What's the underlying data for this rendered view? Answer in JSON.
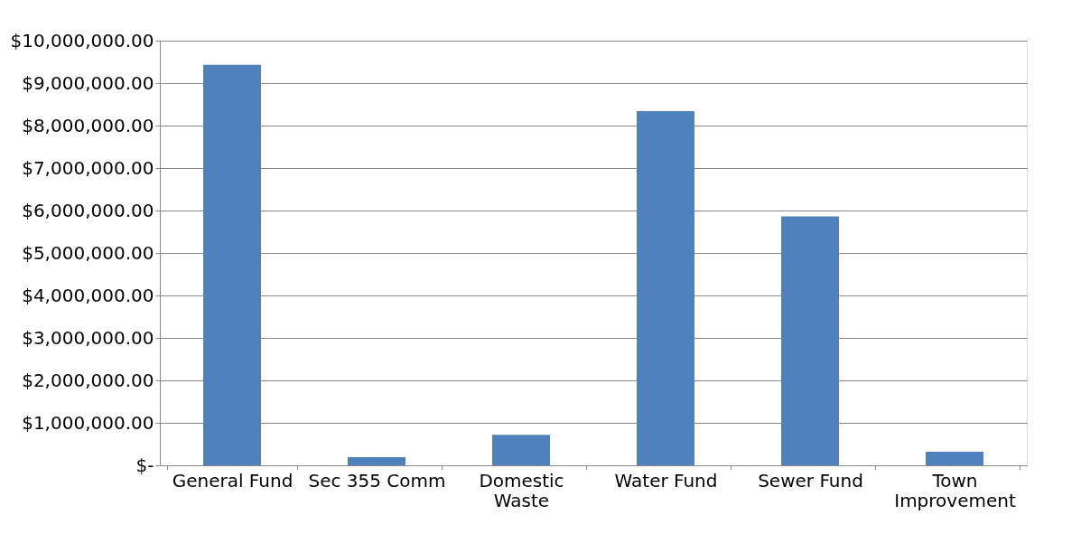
{
  "chart_data": {
    "type": "bar",
    "categories": [
      "General Fund",
      "Sec 355 Comm",
      "Domestic Waste",
      "Water Fund",
      "Sewer Fund",
      "Town Improvement"
    ],
    "values": [
      9430000,
      190000,
      720000,
      8340000,
      5860000,
      320000
    ],
    "color": "#4f81bd",
    "ylim": [
      0,
      10000000
    ],
    "yticks": [
      {
        "value": 0,
        "label": "$-"
      },
      {
        "value": 1000000,
        "label": "$1,000,000.00"
      },
      {
        "value": 2000000,
        "label": "$2,000,000.00"
      },
      {
        "value": 3000000,
        "label": "$3,000,000.00"
      },
      {
        "value": 4000000,
        "label": "$4,000,000.00"
      },
      {
        "value": 5000000,
        "label": "$5,000,000.00"
      },
      {
        "value": 6000000,
        "label": "$6,000,000.00"
      },
      {
        "value": 7000000,
        "label": "$7,000,000.00"
      },
      {
        "value": 8000000,
        "label": "$8,000,000.00"
      },
      {
        "value": 9000000,
        "label": "$9,000,000.00"
      },
      {
        "value": 10000000,
        "label": "$10,000,000.00"
      }
    ],
    "grid": "y"
  }
}
